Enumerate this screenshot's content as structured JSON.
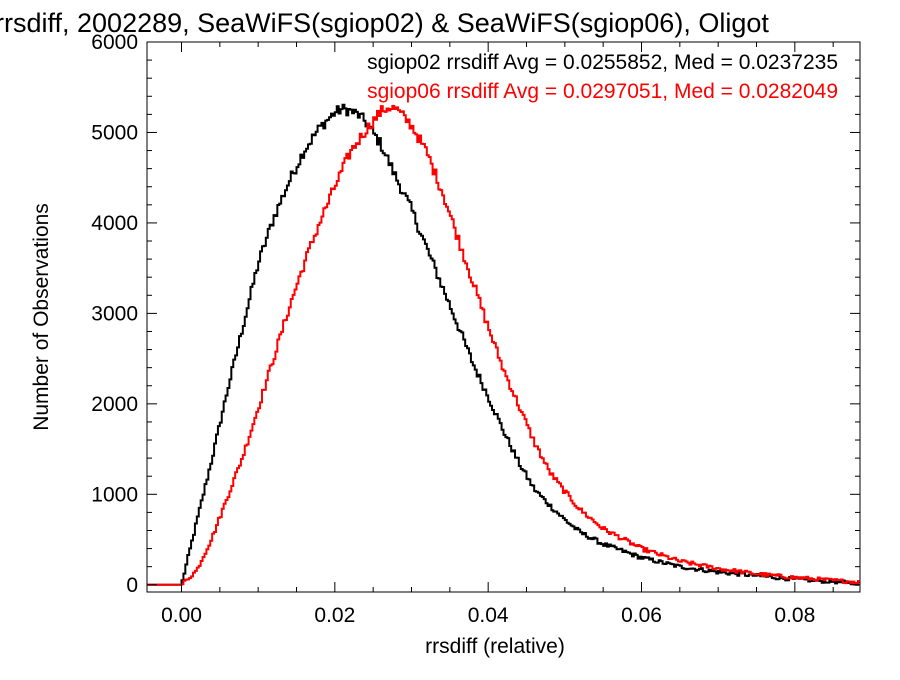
{
  "chart_data": {
    "type": "line",
    "title": "rrsdiff, 2002289, SeaWiFS(sgiop02) & SeaWiFS(sgiop06), Oligot",
    "xlabel": "rrsdiff (relative)",
    "ylabel": "Number of Observations",
    "xlim": [
      -0.0045,
      0.0885
    ],
    "ylim": [
      -80,
      6000
    ],
    "x_ticks": [
      0.0,
      0.02,
      0.04,
      0.06,
      0.08
    ],
    "x_tick_labels": [
      "0.00",
      "0.02",
      "0.04",
      "0.06",
      "0.08"
    ],
    "y_ticks": [
      0,
      1000,
      2000,
      3000,
      4000,
      5000,
      6000
    ],
    "y_tick_labels": [
      "0",
      "1000",
      "2000",
      "3000",
      "4000",
      "5000",
      "6000"
    ],
    "grid": false,
    "annotations": [
      {
        "text": "sgiop02 rrsdiff Avg = 0.0255852, Med = 0.0237235",
        "color": "#000000"
      },
      {
        "text": "sgiop06 rrsdiff Avg = 0.0297051, Med = 0.0282049",
        "color": "#ff0000"
      }
    ],
    "series": [
      {
        "name": "sgiop02",
        "color": "#000000",
        "x": [
          -0.002,
          0.0,
          0.002,
          0.004,
          0.006,
          0.008,
          0.01,
          0.012,
          0.014,
          0.016,
          0.018,
          0.02,
          0.021,
          0.022,
          0.023,
          0.024,
          0.026,
          0.028,
          0.03,
          0.032,
          0.034,
          0.036,
          0.038,
          0.04,
          0.042,
          0.044,
          0.046,
          0.048,
          0.05,
          0.052,
          0.055,
          0.06,
          0.065,
          0.07,
          0.075,
          0.08,
          0.088
        ],
        "y": [
          0,
          0,
          700,
          1400,
          2150,
          2850,
          3550,
          4050,
          4450,
          4800,
          5050,
          5220,
          5260,
          5240,
          5200,
          5120,
          4870,
          4500,
          4150,
          3720,
          3300,
          2880,
          2450,
          2080,
          1700,
          1350,
          1060,
          880,
          720,
          580,
          450,
          300,
          200,
          140,
          100,
          60,
          20
        ]
      },
      {
        "name": "sgiop06",
        "color": "#ff0000",
        "x": [
          -0.002,
          0.0,
          0.002,
          0.004,
          0.006,
          0.008,
          0.01,
          0.012,
          0.014,
          0.016,
          0.018,
          0.02,
          0.022,
          0.024,
          0.026,
          0.027,
          0.028,
          0.03,
          0.032,
          0.034,
          0.036,
          0.038,
          0.04,
          0.042,
          0.044,
          0.046,
          0.048,
          0.05,
          0.052,
          0.055,
          0.06,
          0.065,
          0.07,
          0.075,
          0.08,
          0.088
        ],
        "y": [
          0,
          0,
          160,
          520,
          970,
          1420,
          1950,
          2500,
          3050,
          3550,
          4000,
          4400,
          4780,
          5020,
          5230,
          5280,
          5260,
          5080,
          4780,
          4350,
          3850,
          3350,
          2850,
          2380,
          1980,
          1580,
          1250,
          1030,
          830,
          620,
          400,
          260,
          180,
          120,
          80,
          30
        ]
      }
    ]
  }
}
